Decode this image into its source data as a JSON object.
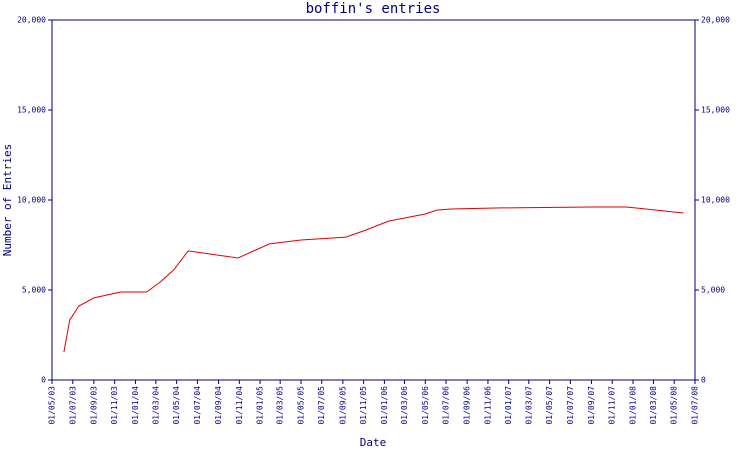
{
  "chart_data": {
    "type": "line",
    "title": "boffin's entries",
    "y_label": "Number of Entries",
    "x_label": "Date",
    "x": [
      "05/06/03",
      "22/06/03",
      "19/07/03",
      "01/09/03",
      "19/11/03",
      "03/02/04",
      "13/03/04",
      "22/04/04",
      "04/06/04",
      "28/10/04",
      "28/01/05",
      "01/05/05",
      "10/09/05",
      "07/11/05",
      "13/01/06",
      "01/05/06",
      "04/06/06",
      "15/07/06",
      "10/12/06",
      "01/09/07",
      "13/12/07",
      "28/05/08"
    ],
    "series": [
      {
        "color": "#e00000",
        "values": [
          1550,
          3330,
          4110,
          4560,
          4890,
          4890,
          5440,
          6110,
          7170,
          6780,
          7560,
          7780,
          7940,
          8330,
          8830,
          9220,
          9440,
          9500,
          9560,
          9610,
          9610,
          9280
        ]
      }
    ],
    "xlim": [
      "01/05/03",
      "01/07/08"
    ],
    "xticks": [
      "01/05/03",
      "01/07/03",
      "01/09/03",
      "01/11/03",
      "01/01/04",
      "01/03/04",
      "01/05/04",
      "01/07/04",
      "01/09/04",
      "01/11/04",
      "01/01/05",
      "01/03/05",
      "01/05/05",
      "01/07/05",
      "01/09/05",
      "01/11/05",
      "01/01/06",
      "01/03/06",
      "01/05/06",
      "01/07/06",
      "01/09/06",
      "01/11/06",
      "01/01/07",
      "01/03/07",
      "01/05/07",
      "01/07/07",
      "01/09/07",
      "01/11/07",
      "01/01/08",
      "01/03/08",
      "01/05/08",
      "01/07/08"
    ],
    "ylim": [
      0,
      20000
    ],
    "yticks": [
      0,
      {
        "value": 5000,
        "label": "5,000"
      },
      {
        "value": 10000,
        "label": "10,000"
      },
      {
        "value": 15000,
        "label": "15,000"
      },
      {
        "value": 20000,
        "label": "20,000"
      }
    ],
    "axis_color": "#000080"
  }
}
